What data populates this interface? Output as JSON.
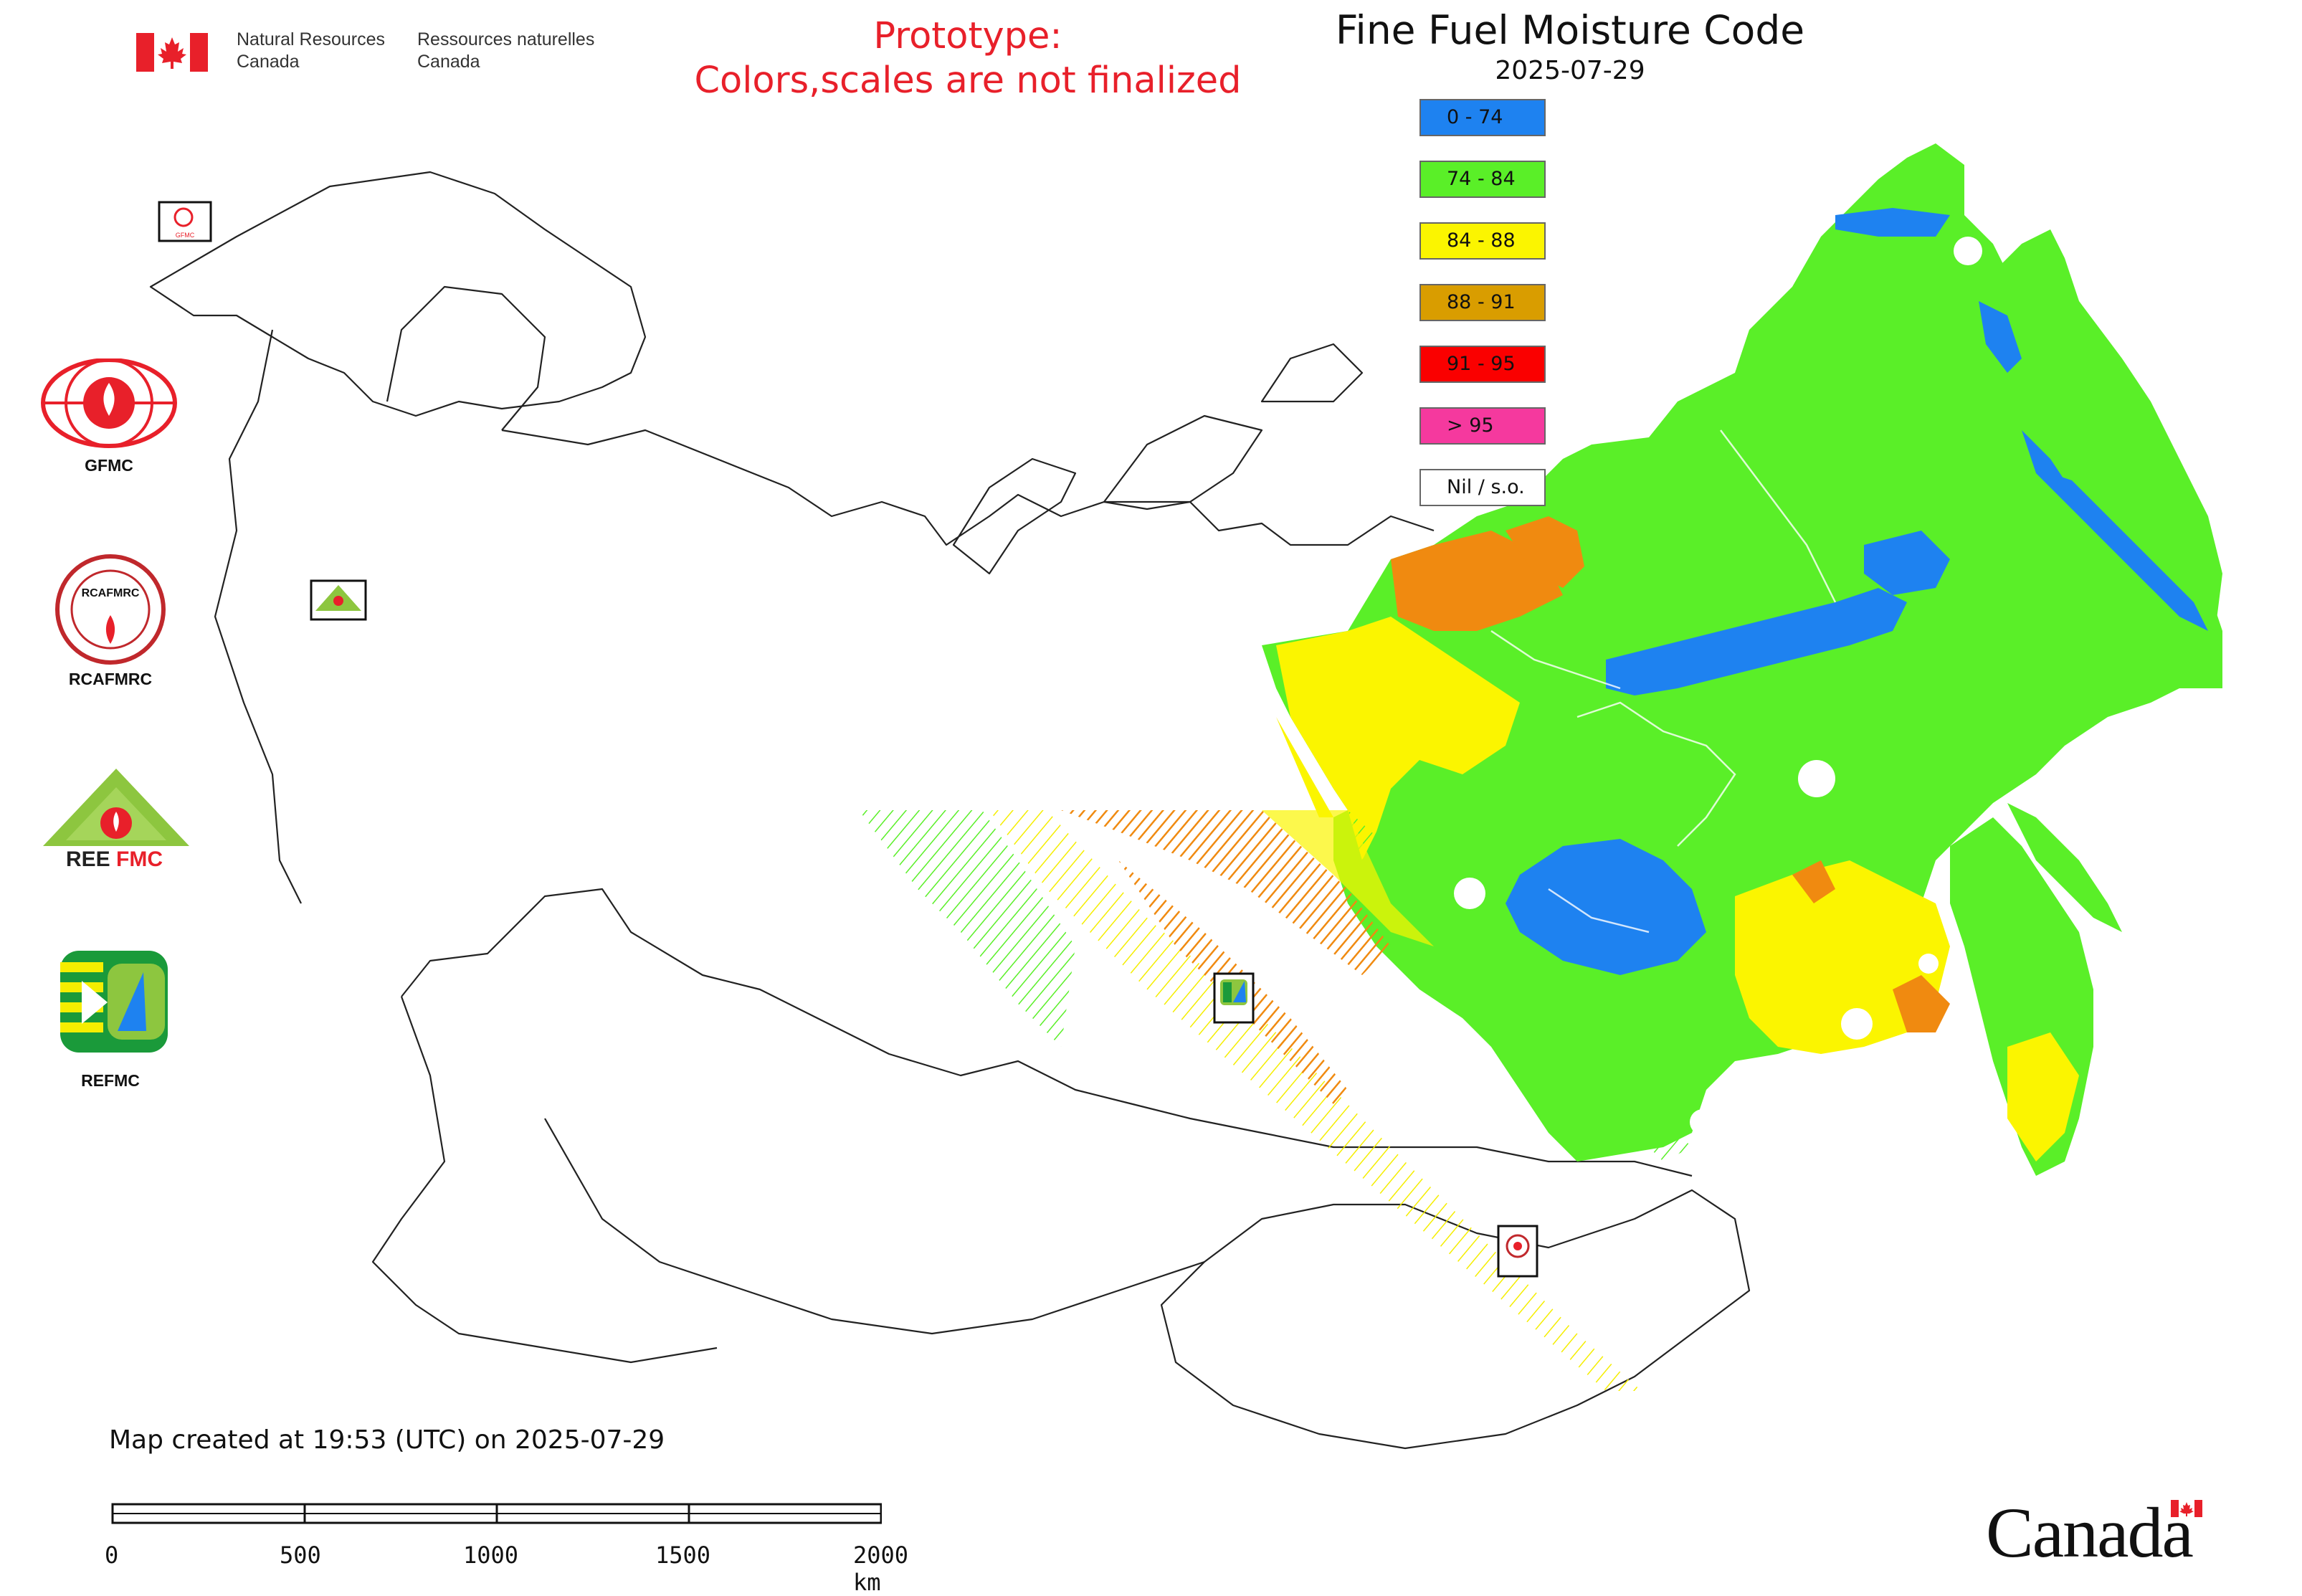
{
  "header": {
    "org_en_line1": "Natural Resources",
    "org_en_line2": "Canada",
    "org_fr_line1": "Ressources naturelles",
    "org_fr_line2": "Canada"
  },
  "notice": {
    "line1": "Prototype:",
    "line2": "Colors,scales are not finalized",
    "color": "#e8202a"
  },
  "title": "Fine Fuel Moisture Code",
  "date": "2025-07-29",
  "legend": [
    {
      "label": "0 - 74",
      "color": "#1e82f0"
    },
    {
      "label": "74 - 84",
      "color": "#5aef28"
    },
    {
      "label": "84 - 88",
      "color": "#fbf500"
    },
    {
      "label": "88 - 91",
      "color": "#d99d00"
    },
    {
      "label": "91 - 95",
      "color": "#fa0000"
    },
    {
      "label": "> 95",
      "color": "#f5399e"
    },
    {
      "label": "Nil / s.o.",
      "color": "#ffffff"
    }
  ],
  "logos": [
    {
      "name": "GFMC",
      "label": "GFMC"
    },
    {
      "name": "RCAFMRC",
      "label": "RCAFMRC"
    },
    {
      "name": "REEFMC",
      "label": "REEFMC"
    },
    {
      "name": "REFMC",
      "label": "REFMC"
    }
  ],
  "map_markers": [
    {
      "name": "GFMC"
    },
    {
      "name": "REEFMC"
    },
    {
      "name": "REFMC"
    },
    {
      "name": "RCAFMRC"
    }
  ],
  "footer": {
    "created": "Map created at 19:53 (UTC) on 2025-07-29",
    "scale_labels": [
      "0",
      "500",
      "1000",
      "1500",
      "2000 km"
    ],
    "wordmark": "Canada"
  }
}
